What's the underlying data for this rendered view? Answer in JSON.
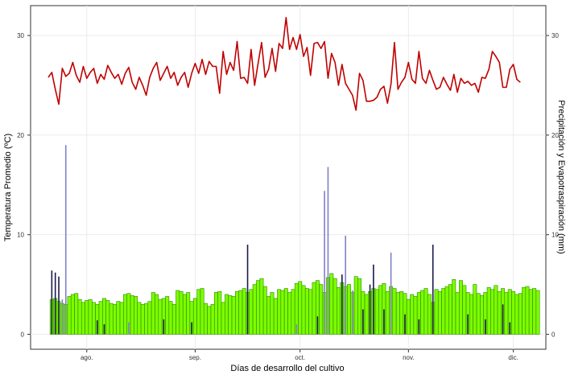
{
  "chart_data": {
    "type": "bar",
    "xlabel": "Días de desarrollo del cultivo",
    "ylabel_left": "Temperatura Promedio (ºC)",
    "ylabel_right": "Precipitación y Evapotraspiración (mm)",
    "ylim": [
      -1.5,
      33
    ],
    "grid": true,
    "legend": "none",
    "x_start": "2020-07-21",
    "x_ticks": [
      {
        "label": "ago.",
        "day": 11
      },
      {
        "label": "sep.",
        "day": 42
      },
      {
        "label": "oct.",
        "day": 72
      },
      {
        "label": "nov.",
        "day": 103
      },
      {
        "label": "dic.",
        "day": 133
      }
    ],
    "y_ticks_left": [
      0,
      10,
      20,
      30
    ],
    "y_ticks_right": [
      0,
      10,
      20,
      30
    ],
    "colors": {
      "temperature": "#c00000",
      "evapotranspiration_fill": "#7cfc00",
      "evapotranspiration_edge": "#2e8b00",
      "precipitation_dark": "#1a1a4d",
      "precipitation_light": "#8080c8"
    },
    "series": [
      {
        "name": "Temperatura Promedio",
        "kind": "line",
        "start_day": 0,
        "values": [
          25.8,
          26.3,
          24.6,
          23.1,
          26.7,
          25.9,
          26.2,
          27.3,
          26.0,
          25.3,
          26.9,
          25.7,
          26.3,
          26.7,
          25.2,
          26.1,
          25.6,
          27.0,
          26.3,
          25.7,
          26.1,
          25.1,
          26.2,
          26.8,
          25.3,
          24.6,
          25.8,
          25.0,
          24.0,
          25.8,
          26.7,
          27.3,
          25.5,
          26.2,
          26.9,
          25.7,
          26.3,
          25.0,
          25.8,
          26.3,
          24.8,
          26.2,
          27.2,
          26.2,
          27.6,
          26.1,
          27.4,
          26.9,
          26.9,
          24.2,
          28.4,
          26.1,
          27.3,
          26.5,
          29.4,
          25.7,
          25.8,
          25.2,
          28.6,
          25.0,
          27.2,
          29.3,
          25.8,
          26.6,
          28.7,
          26.4,
          29.2,
          28.7,
          31.8,
          28.6,
          29.8,
          28.6,
          30.1,
          27.9,
          28.8,
          26.0,
          29.2,
          29.3,
          28.7,
          29.4,
          25.7,
          28.2,
          27.3,
          25.0,
          27.1,
          25.2,
          24.6,
          24.0,
          22.5,
          26.2,
          25.5,
          23.4,
          23.4,
          23.5,
          23.8,
          24.6,
          24.9,
          23.2,
          25.1,
          29.3,
          24.6,
          25.3,
          25.8,
          27.3,
          25.6,
          25.2,
          28.4,
          25.7,
          25.2,
          26.5,
          25.5,
          24.6,
          24.8,
          25.8,
          25.1,
          24.5,
          26.1,
          24.3,
          25.7,
          25.2,
          25.4,
          25.0,
          25.2,
          24.3,
          25.8,
          25.7,
          26.6,
          28.4,
          27.9,
          27.3,
          24.8,
          24.8,
          26.6,
          27.1,
          25.6,
          25.3
        ]
      },
      {
        "name": "Evapotranspiración",
        "kind": "bar",
        "start_day": 1,
        "values": [
          3.5,
          3.6,
          3.3,
          3.1,
          3.0,
          3.8,
          4.0,
          4.1,
          3.5,
          3.2,
          3.4,
          3.5,
          3.2,
          3.0,
          3.3,
          3.6,
          3.4,
          3.1,
          3.0,
          3.3,
          3.2,
          4.0,
          4.1,
          3.9,
          3.8,
          3.2,
          3.0,
          3.1,
          3.3,
          4.2,
          4.0,
          3.5,
          3.6,
          3.8,
          3.3,
          3.0,
          4.4,
          4.3,
          4.0,
          4.2,
          3.3,
          3.6,
          4.5,
          4.6,
          3.1,
          2.8,
          3.0,
          4.2,
          4.3,
          3.2,
          4.0,
          3.9,
          3.8,
          4.3,
          4.4,
          4.6,
          4.2,
          4.5,
          5.0,
          5.4,
          5.6,
          4.8,
          3.8,
          4.2,
          3.6,
          4.5,
          4.4,
          4.6,
          4.2,
          4.5,
          5.1,
          5.3,
          4.9,
          4.6,
          4.5,
          5.2,
          5.4,
          5.0,
          4.2,
          5.7,
          6.1,
          5.6,
          4.7,
          5.2,
          4.8,
          5.0,
          4.2,
          5.8,
          5.6,
          4.3,
          4.0,
          4.3,
          4.6,
          4.5,
          4.9,
          5.1,
          4.3,
          4.8,
          4.6,
          4.2,
          4.3,
          4.1,
          3.5,
          4.0,
          3.8,
          4.2,
          4.4,
          4.6,
          4.0,
          3.2,
          4.5,
          4.3,
          4.6,
          4.8,
          5.0,
          5.5,
          4.2,
          5.4,
          4.9,
          4.2,
          4.0,
          5.0,
          4.1,
          3.9,
          4.2,
          4.7,
          4.5,
          4.9,
          4.3,
          4.6,
          4.2,
          4.5,
          4.3,
          4.0,
          4.1,
          4.7,
          4.8,
          4.5,
          4.6,
          4.4
        ]
      },
      {
        "name": "Precipitación",
        "kind": "bar",
        "points": [
          {
            "day": 1,
            "value": 6.4,
            "shade": "dark"
          },
          {
            "day": 2,
            "value": 6.2,
            "shade": "dark"
          },
          {
            "day": 3,
            "value": 5.8,
            "shade": "dark"
          },
          {
            "day": 4,
            "value": 3.5,
            "shade": "light"
          },
          {
            "day": 5,
            "value": 19.0,
            "shade": "light"
          },
          {
            "day": 14,
            "value": 1.4,
            "shade": "dark"
          },
          {
            "day": 16,
            "value": 1.0,
            "shade": "dark"
          },
          {
            "day": 23,
            "value": 1.2,
            "shade": "light"
          },
          {
            "day": 33,
            "value": 1.5,
            "shade": "dark"
          },
          {
            "day": 41,
            "value": 1.2,
            "shade": "dark"
          },
          {
            "day": 57,
            "value": 9.0,
            "shade": "dark"
          },
          {
            "day": 71,
            "value": 1.0,
            "shade": "light"
          },
          {
            "day": 77,
            "value": 1.8,
            "shade": "dark"
          },
          {
            "day": 79,
            "value": 14.4,
            "shade": "light"
          },
          {
            "day": 80,
            "value": 16.8,
            "shade": "light"
          },
          {
            "day": 84,
            "value": 6.0,
            "shade": "dark"
          },
          {
            "day": 85,
            "value": 9.9,
            "shade": "light"
          },
          {
            "day": 87,
            "value": 4.4,
            "shade": "light"
          },
          {
            "day": 90,
            "value": 2.5,
            "shade": "dark"
          },
          {
            "day": 92,
            "value": 5.0,
            "shade": "dark"
          },
          {
            "day": 93,
            "value": 7.0,
            "shade": "dark"
          },
          {
            "day": 96,
            "value": 2.5,
            "shade": "dark"
          },
          {
            "day": 98,
            "value": 8.2,
            "shade": "light"
          },
          {
            "day": 102,
            "value": 2.0,
            "shade": "dark"
          },
          {
            "day": 106,
            "value": 1.5,
            "shade": "dark"
          },
          {
            "day": 110,
            "value": 9.0,
            "shade": "dark"
          },
          {
            "day": 120,
            "value": 2.0,
            "shade": "dark"
          },
          {
            "day": 125,
            "value": 1.5,
            "shade": "dark"
          },
          {
            "day": 130,
            "value": 3.0,
            "shade": "dark"
          },
          {
            "day": 132,
            "value": 1.2,
            "shade": "dark"
          }
        ]
      }
    ]
  }
}
